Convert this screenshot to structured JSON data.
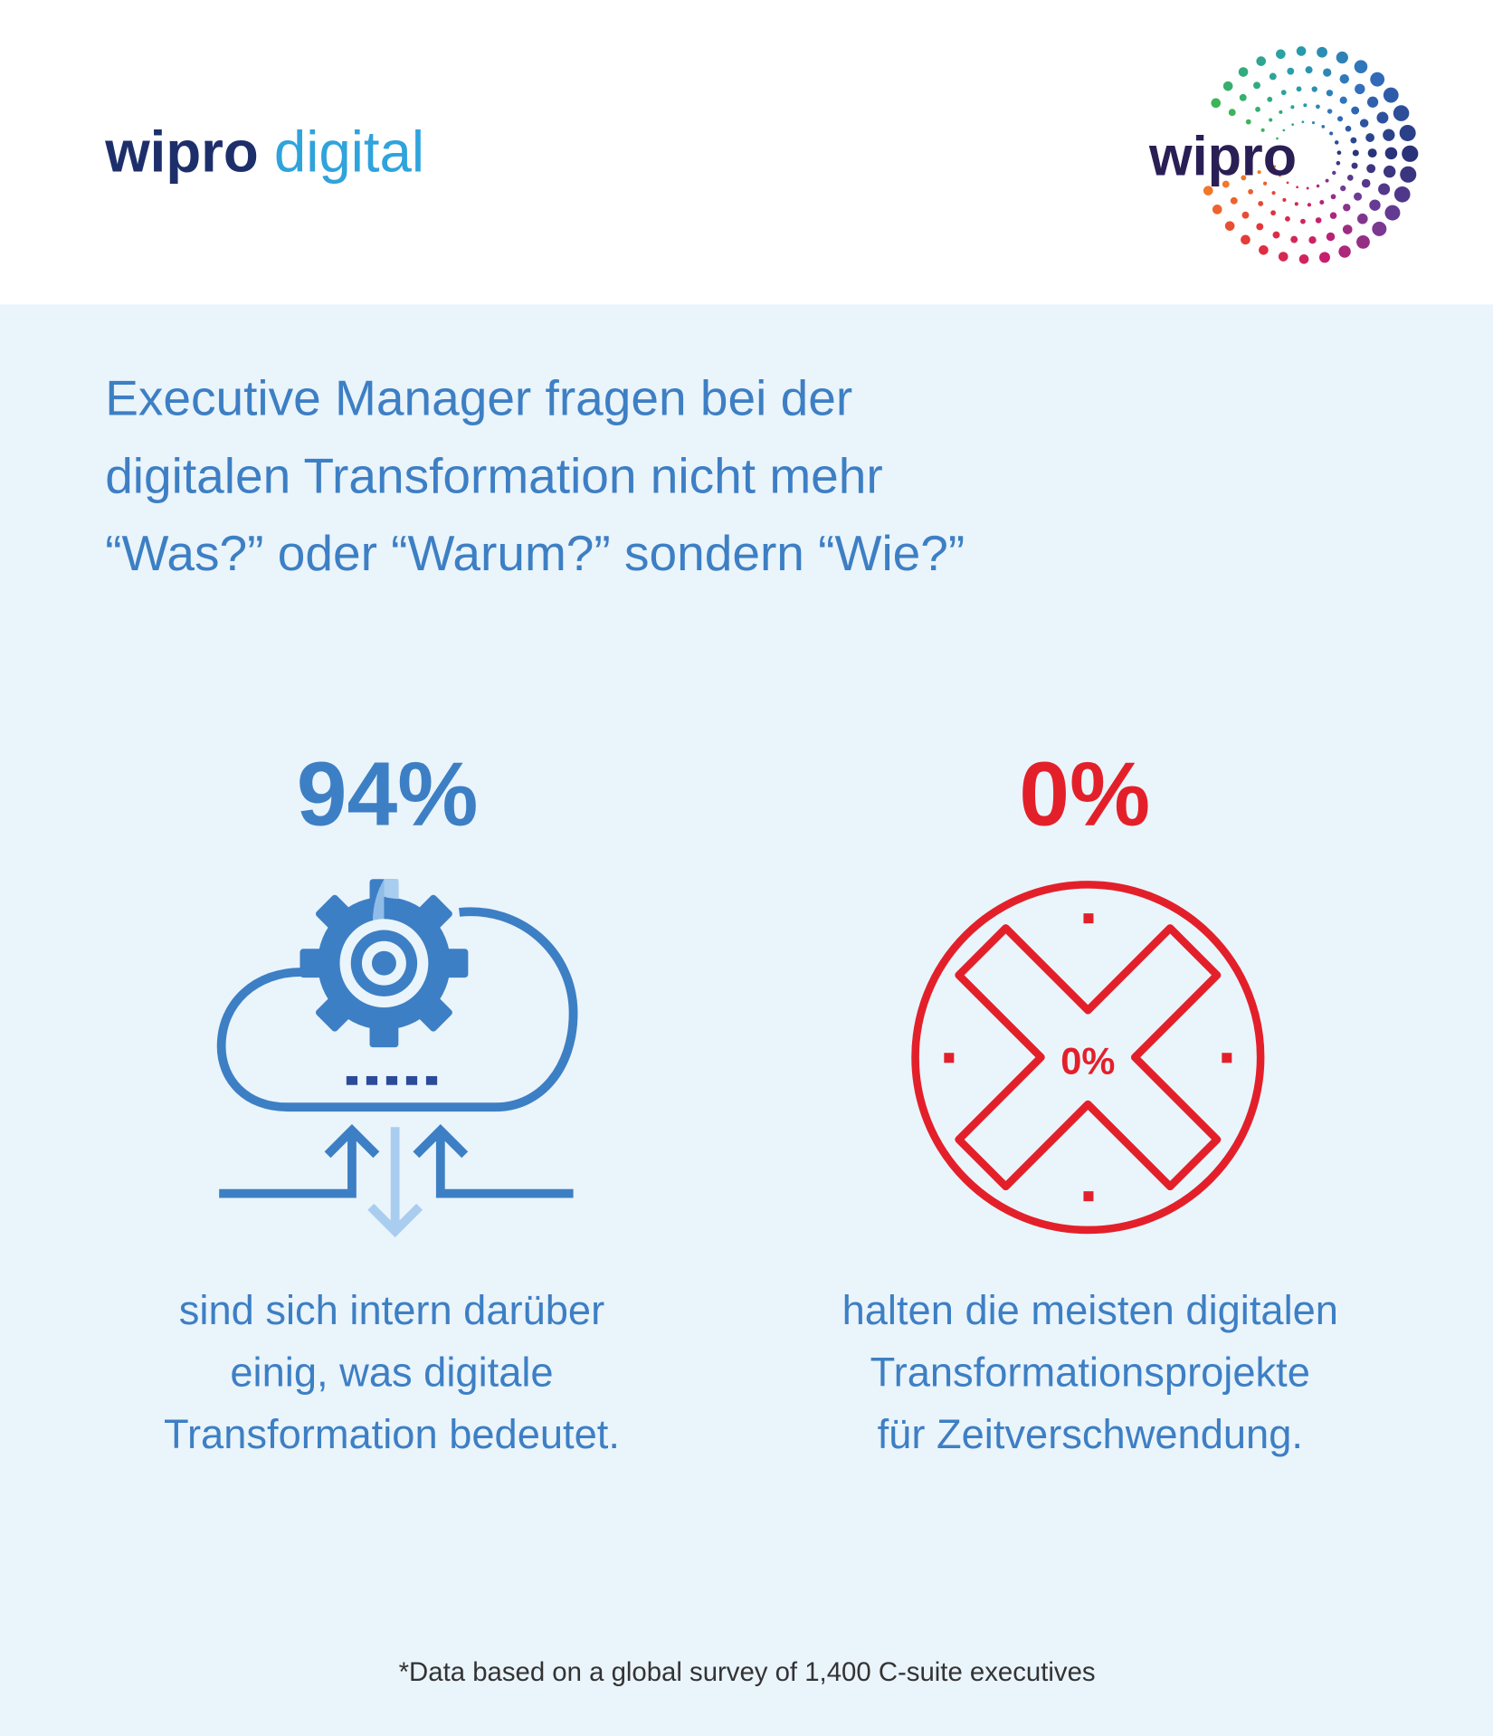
{
  "header": {
    "brand": "wipro",
    "brand_suffix": "digital",
    "logo_text": "wipro"
  },
  "headline": [
    "Executive Manager fragen bei der",
    "digitalen Transformation nicht mehr",
    "“Was?” oder “Warum?” sondern “Wie?”"
  ],
  "stats": [
    {
      "value": "94%",
      "text": [
        "sind sich intern darüber",
        "einig, was digitale",
        "Transformation bedeutet."
      ]
    },
    {
      "value": "0%",
      "icon_label": "0%",
      "text": [
        "halten die meisten digitalen",
        "Transformationsprojekte",
        "für Zeitverschwendung."
      ]
    }
  ],
  "footnote": "*Data based on a global survey of 1,400 C-suite executives"
}
